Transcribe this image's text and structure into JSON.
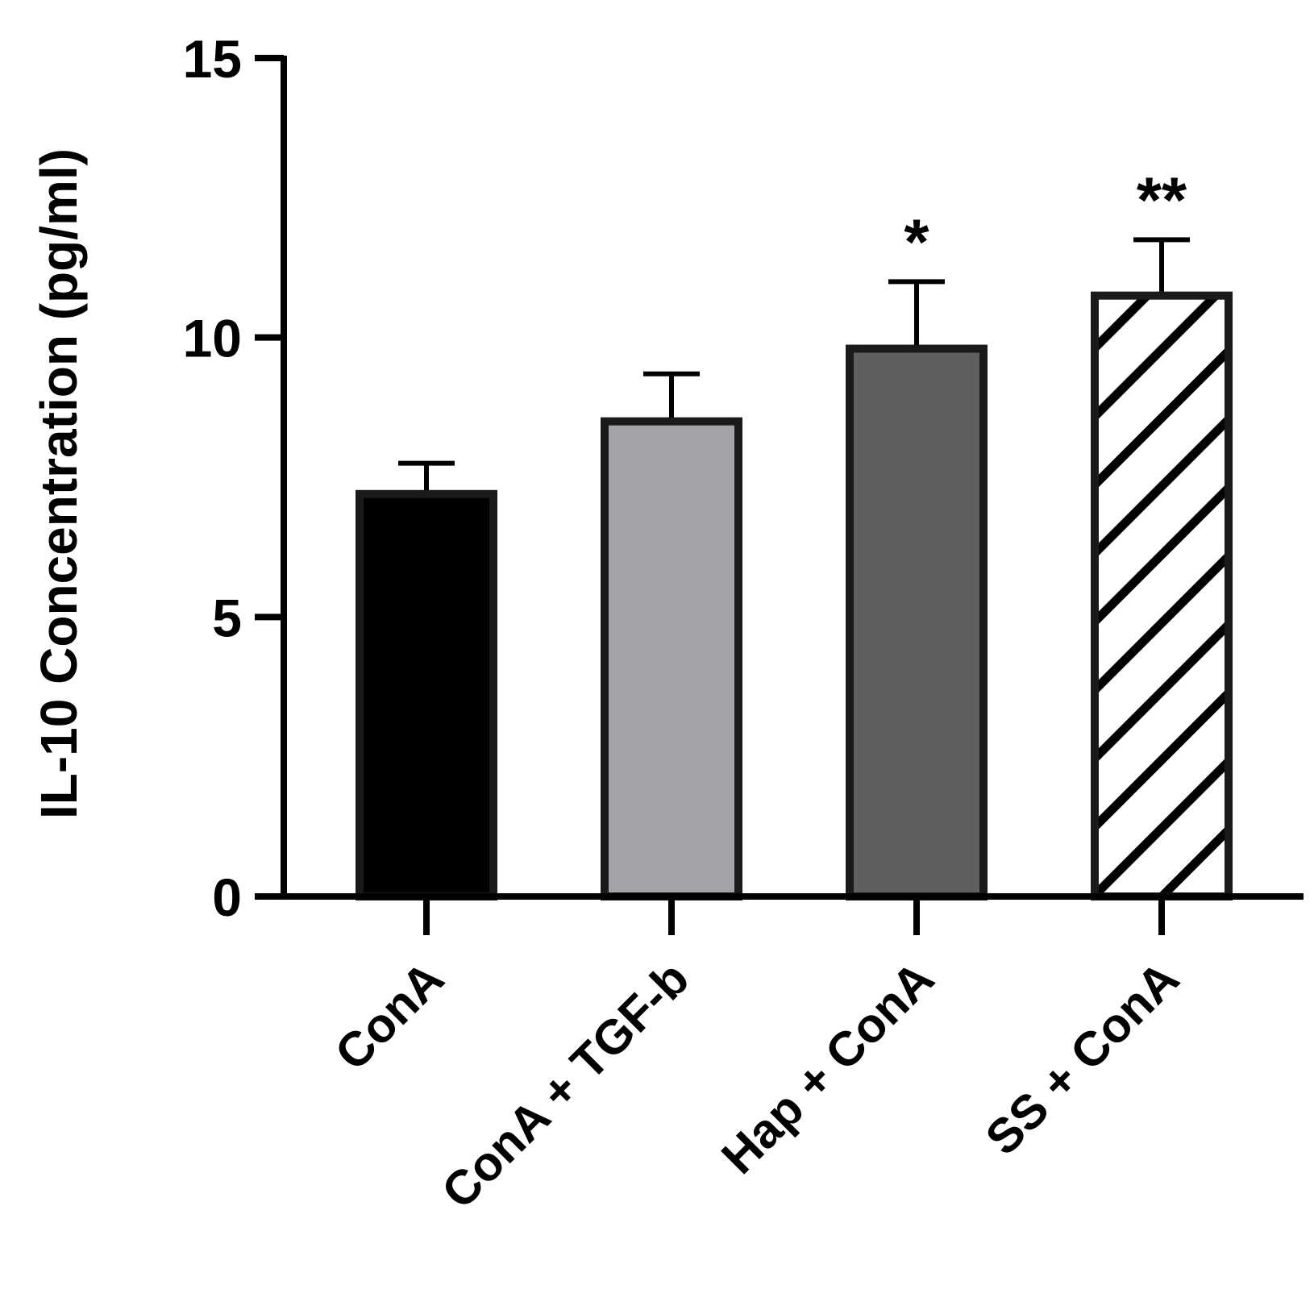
{
  "chart_data": {
    "type": "bar",
    "title": "",
    "xlabel": "",
    "ylabel": "IL-10 Concentration (pg/ml)",
    "ylim": [
      0,
      15
    ],
    "yticks": [
      0,
      5,
      10,
      15
    ],
    "grid": false,
    "legend": "none",
    "categories": [
      "ConA",
      "ConA + TGF-b",
      "Hap + ConA",
      "SS + ConA"
    ],
    "values": [
      7.2,
      8.5,
      9.8,
      10.75
    ],
    "errors": [
      0.55,
      0.85,
      1.2,
      1.0
    ],
    "significance": [
      "",
      "",
      "*",
      "**"
    ],
    "fills": [
      {
        "color": "#000000",
        "pattern": "solid"
      },
      {
        "color": "#a3a3a7",
        "pattern": "solid"
      },
      {
        "color": "#5f5f5f",
        "pattern": "solid"
      },
      {
        "color": "#ffffff",
        "pattern": "diagonal-hatch"
      }
    ],
    "outline_color": "#1a1a1a"
  }
}
